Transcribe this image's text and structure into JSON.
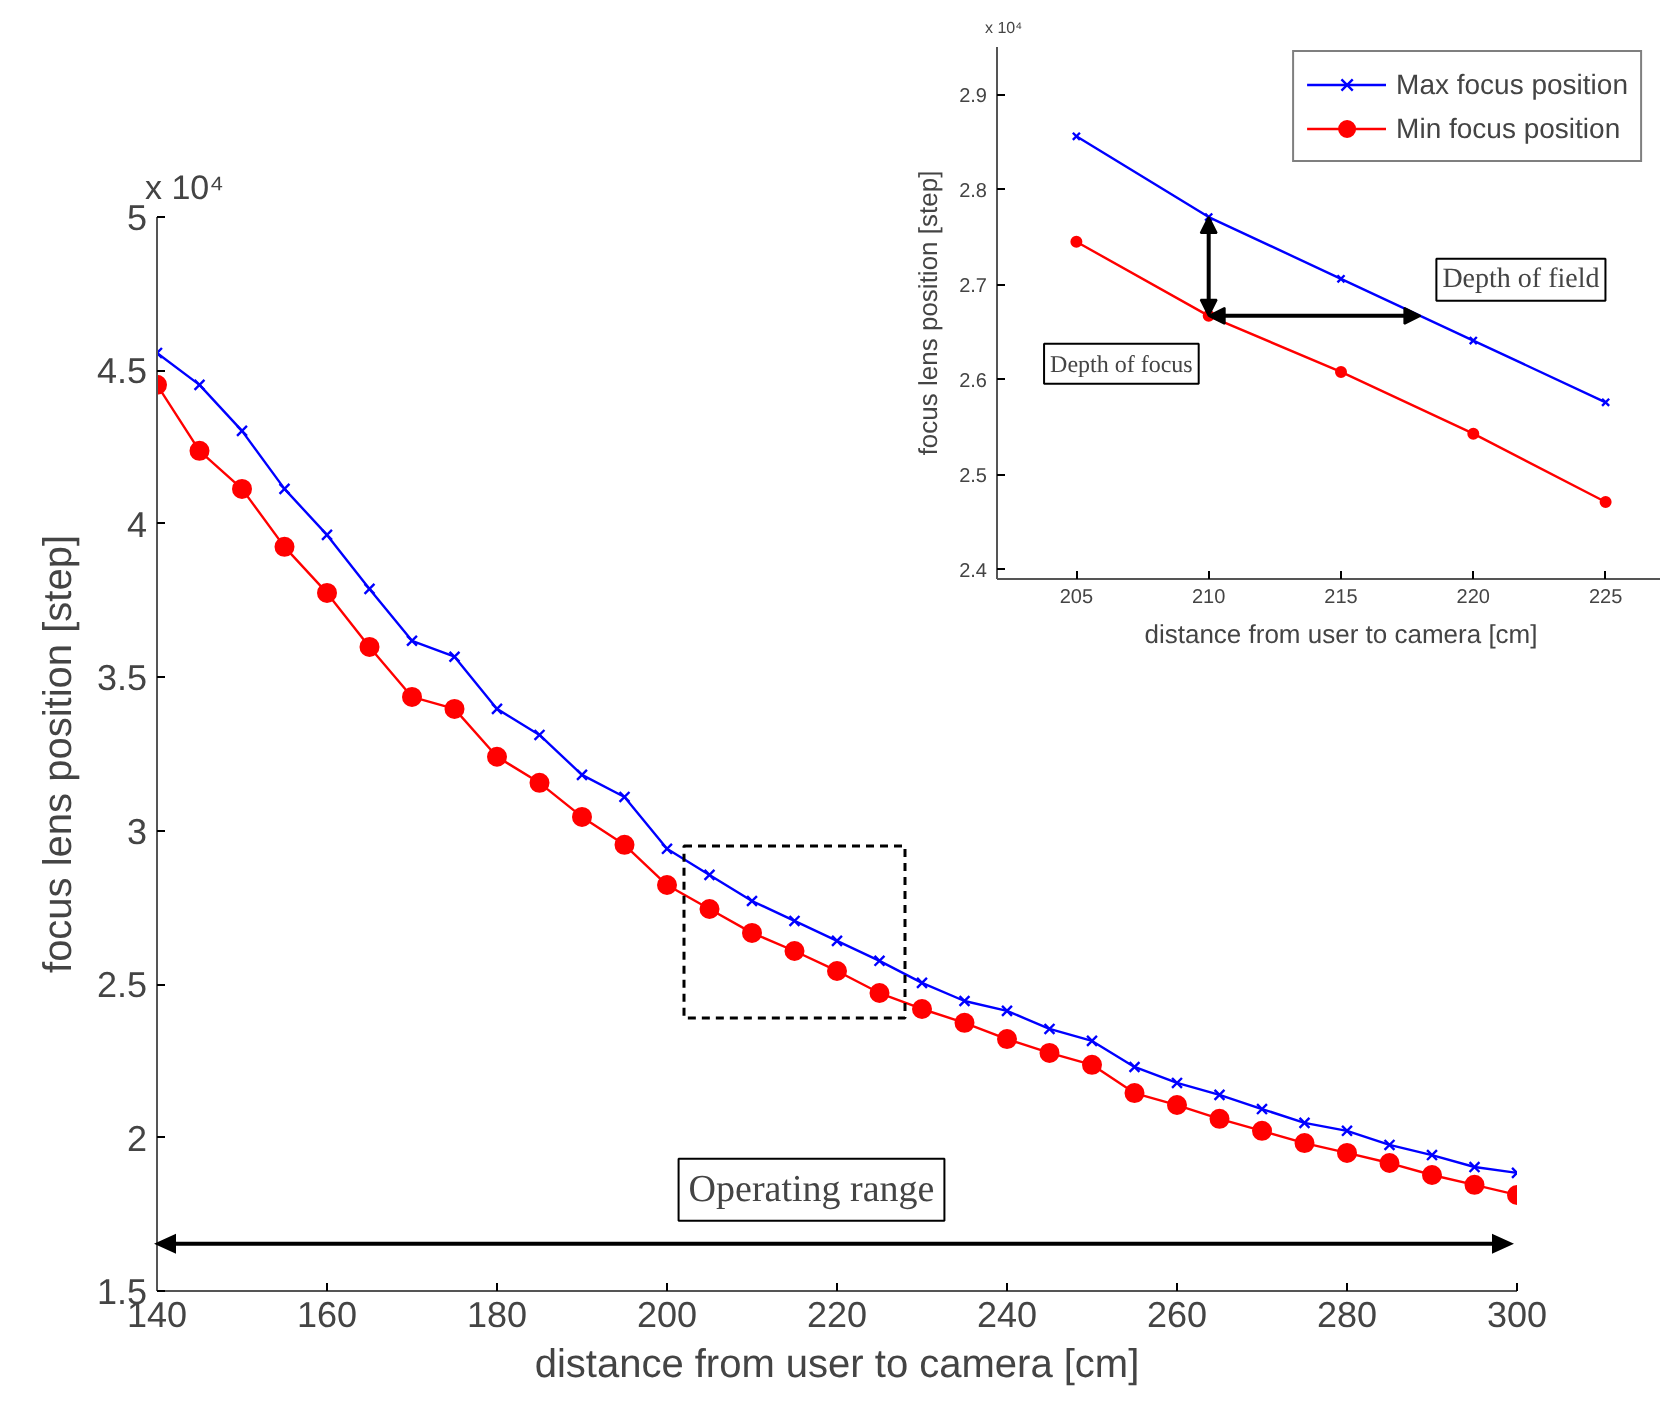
{
  "chart_data": [
    {
      "type": "line",
      "xlabel": "distance from user to camera [cm]",
      "ylabel": "focus lens position [step]",
      "x": [
        140,
        145,
        150,
        155,
        160,
        165,
        170,
        175,
        180,
        185,
        190,
        195,
        200,
        205,
        210,
        215,
        220,
        225,
        230,
        235,
        240,
        245,
        250,
        255,
        260,
        265,
        270,
        275,
        280,
        285,
        290,
        295,
        300
      ],
      "series": [
        {
          "color": "#0000ff",
          "marker": "cross",
          "values": [
            4.557,
            4.453,
            4.303,
            4.114,
            3.964,
            3.788,
            3.619,
            3.567,
            3.397,
            3.312,
            3.182,
            3.11,
            2.941,
            2.856,
            2.771,
            2.706,
            2.641,
            2.576,
            2.504,
            2.445,
            2.413,
            2.354,
            2.315,
            2.23,
            2.178,
            2.139,
            2.093,
            2.048,
            2.022,
            1.976,
            1.943,
            1.904,
            1.885
          ]
        },
        {
          "color": "#ff0000",
          "marker": "circle",
          "values": [
            4.453,
            4.238,
            4.114,
            3.925,
            3.775,
            3.599,
            3.436,
            3.397,
            3.241,
            3.156,
            3.045,
            2.954,
            2.823,
            2.745,
            2.667,
            2.608,
            2.543,
            2.471,
            2.419,
            2.374,
            2.321,
            2.276,
            2.237,
            2.145,
            2.106,
            2.061,
            2.022,
            1.982,
            1.95,
            1.917,
            1.878,
            1.846,
            1.813
          ]
        }
      ],
      "xlim": [
        140,
        300
      ],
      "xticks": [
        140,
        160,
        180,
        200,
        220,
        240,
        260,
        280,
        300
      ],
      "ylim": [
        1.5,
        5
      ],
      "yticks": [
        1.5,
        2,
        2.5,
        3,
        3.5,
        4,
        4.5,
        5
      ],
      "annotations": [
        "x 10⁴",
        "Operating range"
      ],
      "grid": false,
      "legend": false
    },
    {
      "type": "line",
      "xlabel": "distance from user to camera [cm]",
      "ylabel": "focus lens position [step]",
      "x": [
        205,
        210,
        215,
        220,
        225
      ],
      "series": [
        {
          "name": "Max focus position",
          "color": "#0000ff",
          "marker": "cross",
          "values": [
            2.856,
            2.771,
            2.706,
            2.641,
            2.576
          ]
        },
        {
          "name": "Min focus position",
          "color": "#ff0000",
          "marker": "circle",
          "values": [
            2.745,
            2.667,
            2.608,
            2.543,
            2.471
          ]
        }
      ],
      "xlim": [
        202,
        228
      ],
      "xticks": [
        205,
        210,
        215,
        220,
        225
      ],
      "ylim": [
        2.39,
        2.95
      ],
      "yticks": [
        2.4,
        2.5,
        2.6,
        2.7,
        2.8,
        2.9
      ],
      "annotations": [
        "x 10⁴",
        {
          "text": "Depth of focus",
          "x": 210,
          "y": 2.667
        },
        {
          "text": "Depth of field",
          "x": 218,
          "y": 2.667
        }
      ],
      "grid": false,
      "legend": "top right"
    }
  ]
}
